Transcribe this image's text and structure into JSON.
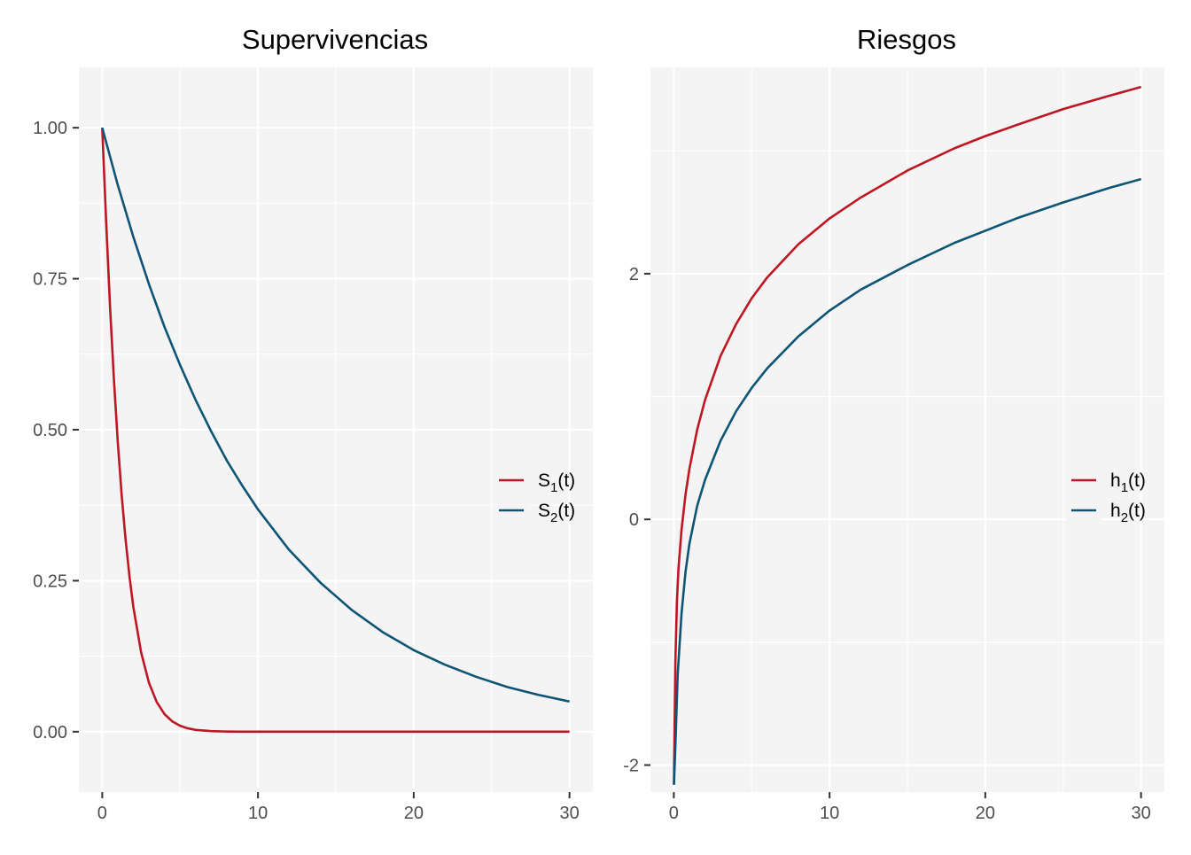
{
  "colors": {
    "series1": "#BE1622",
    "series2": "#0E5475",
    "panel_background": "#F4F4F4",
    "grid": "#FFFFFF",
    "tick_text": "#4D4D4D"
  },
  "chart_data": [
    {
      "type": "line",
      "title": "Supervivencias",
      "xlabel": "",
      "ylabel": "",
      "xlim": [
        -1.5,
        31.5
      ],
      "ylim": [
        -0.1,
        1.1
      ],
      "x_ticks": [
        0,
        10,
        20,
        30
      ],
      "x_tick_labels": [
        "0",
        "10",
        "20",
        "30"
      ],
      "y_ticks": [
        0,
        0.25,
        0.5,
        0.75,
        1
      ],
      "y_tick_labels": [
        "0.00",
        "0.25",
        "0.50",
        "0.75",
        "1.00"
      ],
      "grid": true,
      "legend_position": "right",
      "series": [
        {
          "name": "S1(t)",
          "label_main": "S",
          "label_sub": "1",
          "label_suffix": "(t)",
          "color": "#BE1622",
          "x": [
            0,
            0.25,
            0.5,
            0.75,
            1,
            1.25,
            1.5,
            1.75,
            2,
            2.5,
            3,
            3.5,
            4,
            4.5,
            5,
            5.5,
            6,
            7,
            8,
            9,
            10,
            12,
            15,
            20,
            25,
            30
          ],
          "y": [
            1.0,
            0.845,
            0.705,
            0.583,
            0.479,
            0.391,
            0.318,
            0.257,
            0.206,
            0.131,
            0.081,
            0.049,
            0.029,
            0.017,
            0.0098,
            0.0055,
            0.003,
            0.0009,
            0.00025,
            7e-05,
            2e-05,
            0,
            0,
            0,
            0,
            0
          ]
        },
        {
          "name": "S2(t)",
          "label_main": "S",
          "label_sub": "2",
          "label_suffix": "(t)",
          "color": "#0E5475",
          "x": [
            0,
            1,
            2,
            3,
            4,
            5,
            6,
            7,
            8,
            9,
            10,
            12,
            14,
            16,
            18,
            20,
            22,
            24,
            26,
            28,
            30
          ],
          "y": [
            1.0,
            0.905,
            0.819,
            0.741,
            0.67,
            0.607,
            0.549,
            0.497,
            0.449,
            0.407,
            0.368,
            0.301,
            0.247,
            0.202,
            0.165,
            0.135,
            0.111,
            0.091,
            0.074,
            0.061,
            0.05
          ]
        }
      ]
    },
    {
      "type": "line",
      "title": "Riesgos",
      "xlabel": "",
      "ylabel": "",
      "xlim": [
        -1.5,
        31.5
      ],
      "ylim": [
        -2.22,
        3.68
      ],
      "x_ticks": [
        0,
        10,
        20,
        30
      ],
      "x_tick_labels": [
        "0",
        "10",
        "20",
        "30"
      ],
      "y_ticks": [
        -2,
        0,
        2
      ],
      "y_tick_labels": [
        "-2",
        "0",
        "2"
      ],
      "grid": true,
      "legend_position": "right",
      "series": [
        {
          "name": "h1(t)",
          "label_main": "h",
          "label_sub": "1",
          "label_suffix": "(t)",
          "color": "#BE1622",
          "x": [
            0.01,
            0.05,
            0.1,
            0.2,
            0.3,
            0.5,
            0.75,
            1,
            1.5,
            2,
            3,
            4,
            5,
            6,
            8,
            10,
            12,
            15,
            18,
            20,
            22,
            25,
            28,
            30
          ],
          "y": [
            -2.16,
            -1.68,
            -1.16,
            -0.67,
            -0.4,
            -0.08,
            0.2,
            0.41,
            0.73,
            0.97,
            1.33,
            1.59,
            1.8,
            1.97,
            2.24,
            2.45,
            2.62,
            2.84,
            3.02,
            3.12,
            3.21,
            3.34,
            3.45,
            3.52
          ]
        },
        {
          "name": "h2(t)",
          "label_main": "h",
          "label_sub": "2",
          "label_suffix": "(t)",
          "color": "#0E5475",
          "x": [
            0.01,
            0.1,
            0.25,
            0.5,
            0.75,
            1,
            1.5,
            2,
            3,
            4,
            5,
            6,
            8,
            10,
            12,
            15,
            18,
            20,
            22,
            25,
            28,
            30
          ],
          "y": [
            -2.16,
            -1.85,
            -1.26,
            -0.76,
            -0.43,
            -0.2,
            0.11,
            0.32,
            0.64,
            0.88,
            1.07,
            1.23,
            1.49,
            1.7,
            1.87,
            2.07,
            2.25,
            2.35,
            2.45,
            2.58,
            2.7,
            2.77
          ]
        }
      ]
    }
  ]
}
